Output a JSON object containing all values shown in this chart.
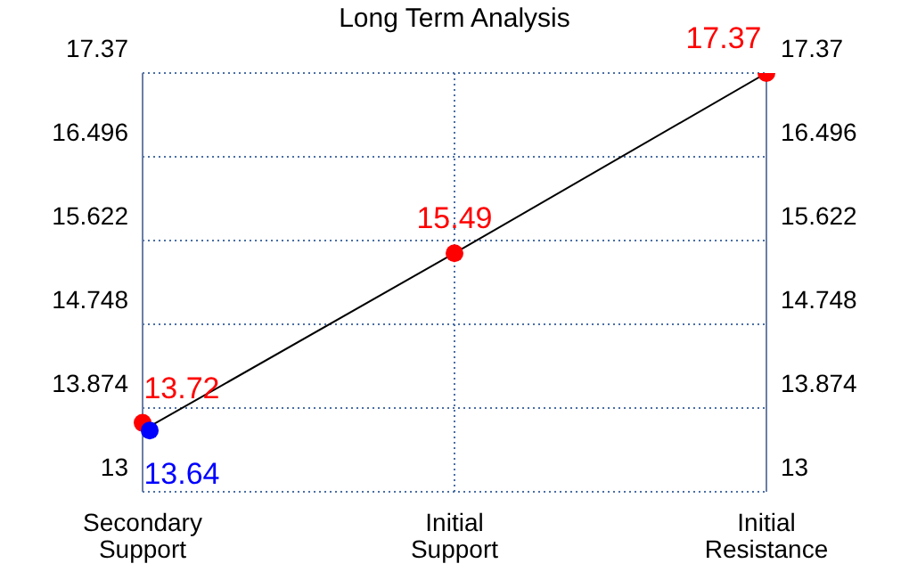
{
  "chart_data": {
    "type": "line",
    "title": "Long Term Analysis",
    "categories": [
      "Secondary Support",
      "Initial Support",
      "Initial Resistance"
    ],
    "series": [
      {
        "type": "line",
        "color": "#000000",
        "values": [
          13.64,
          15.49,
          17.37
        ],
        "marker": "none"
      },
      {
        "type": "scatter",
        "color": "#ff0000",
        "values": [
          13.72,
          15.49,
          17.37
        ],
        "marker": "circle",
        "value_labels": [
          "13.72",
          "15.49",
          "17.37"
        ]
      },
      {
        "type": "scatter",
        "color": "#0000ff",
        "values": [
          13.64,
          null,
          null
        ],
        "marker": "circle",
        "value_labels": [
          "13.64",
          null,
          null
        ]
      }
    ],
    "ylim": [
      13,
      17.37
    ],
    "yticks": [
      13,
      13.874,
      14.748,
      15.622,
      16.496,
      17.37
    ],
    "y2lim": [
      13,
      17.37
    ],
    "y2ticks": [
      13,
      13.874,
      14.748,
      15.622,
      16.496,
      17.37
    ],
    "grid": true
  }
}
